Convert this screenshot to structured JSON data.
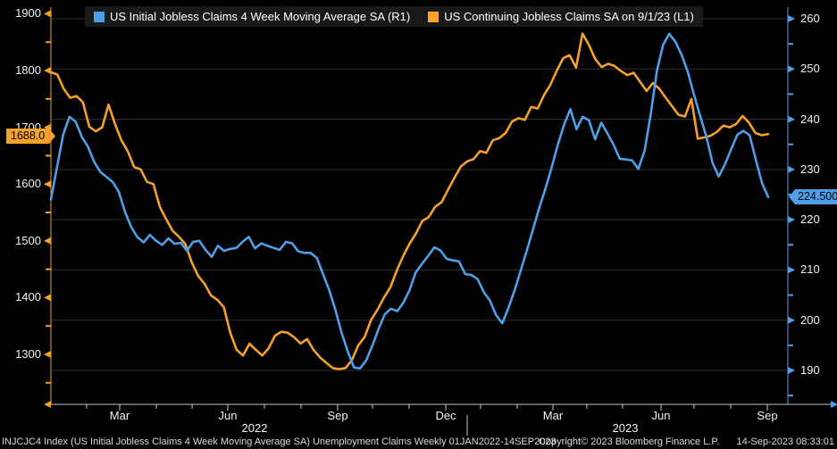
{
  "legend": {
    "items": [
      {
        "label": "US Initial Jobless Claims 4 Week Moving Average SA  (R1)",
        "color": "#4f9fe8"
      },
      {
        "label": "US Continuing Jobless Claims SA  on 9/1/23 (L1)",
        "color": "#ffa22b"
      }
    ]
  },
  "badges": {
    "left_value": "1688.0",
    "right_value": "224.500"
  },
  "colors": {
    "blue": "#4f9fe8",
    "orange": "#f4a02c",
    "grid": "#2f2f2f",
    "axis_white": "#c8c8c8",
    "background": "#000000"
  },
  "left_axis": {
    "tick_labels": [
      "1900",
      "1800",
      "1700",
      "1600",
      "1500",
      "1400",
      "1300"
    ]
  },
  "right_axis": {
    "tick_labels": [
      "260",
      "250",
      "240",
      "230",
      "220",
      "210",
      "200",
      "190"
    ]
  },
  "x_axis": {
    "month_labels": [
      "Mar",
      "Jun",
      "Sep",
      "Dec",
      "Mar",
      "Jun",
      "Sep"
    ],
    "year_labels": [
      "2022",
      "2023"
    ]
  },
  "footer": {
    "left": "INJCJC4 Index (US Initial Jobless Claims 4 Week Moving Average SA) Unemployment Claims  Weekly 01JAN2022-14SEP2023",
    "center": "Copyright© 2023 Bloomberg Finance L.P.",
    "right": "14-Sep-2023 08:33:01"
  },
  "chart_data": {
    "type": "line",
    "x_range": "Weekly, 01JAN2022 - 14SEP2023",
    "x_tick_months": [
      "Mar 2022",
      "Jun 2022",
      "Sep 2022",
      "Dec 2022",
      "Mar 2023",
      "Jun 2023",
      "Sep 2023"
    ],
    "ylim_left": [
      1300,
      1900
    ],
    "ylim_right": [
      190,
      260
    ],
    "grid": "horizontal, aligned to right axis ticks",
    "legend_position": "top",
    "last_values": {
      "initial_claims_4wk_ma": 224.5,
      "continuing_claims": 1688.0
    },
    "series": [
      {
        "name": "US Continuing Jobless Claims SA  on 9/1/23 (L1)",
        "axis": "left",
        "color": "#f4a02c",
        "values": [
          1797,
          1793,
          1768,
          1752,
          1755,
          1744,
          1701,
          1693,
          1700,
          1740,
          1706,
          1677,
          1658,
          1630,
          1626,
          1604,
          1600,
          1560,
          1538,
          1518,
          1507,
          1494,
          1462,
          1438,
          1424,
          1404,
          1396,
          1383,
          1338,
          1308,
          1298,
          1319,
          1308,
          1298,
          1311,
          1333,
          1340,
          1338,
          1330,
          1319,
          1327,
          1308,
          1295,
          1285,
          1276,
          1274,
          1276,
          1290,
          1316,
          1331,
          1361,
          1379,
          1400,
          1418,
          1448,
          1473,
          1495,
          1513,
          1535,
          1542,
          1560,
          1568,
          1590,
          1611,
          1631,
          1640,
          1644,
          1658,
          1655,
          1677,
          1681,
          1690,
          1710,
          1716,
          1713,
          1736,
          1733,
          1757,
          1775,
          1800,
          1822,
          1827,
          1805,
          1865,
          1845,
          1820,
          1806,
          1812,
          1808,
          1799,
          1792,
          1796,
          1780,
          1764,
          1778,
          1768,
          1752,
          1737,
          1722,
          1719,
          1750,
          1680,
          1682,
          1685,
          1692,
          1703,
          1700,
          1706,
          1720,
          1708,
          1690,
          1686,
          1688
        ]
      },
      {
        "name": "US Initial Jobless Claims 4 Week Moving Average SA  (R1)",
        "axis": "right",
        "color": "#4f9fe8",
        "values": [
          224,
          230.5,
          237,
          240.5,
          239.5,
          236.5,
          234.5,
          231.5,
          229.5,
          228.5,
          227.5,
          225.5,
          221.5,
          218.5,
          216.5,
          215.5,
          217,
          215.8,
          215,
          216.3,
          215.2,
          215.4,
          213.8,
          215.6,
          215.8,
          214,
          212.6,
          214.8,
          213.8,
          214.2,
          214.4,
          215.6,
          216.6,
          214.3,
          215.3,
          214.8,
          214.4,
          214,
          215.6,
          215.3,
          213.7,
          213.4,
          213.4,
          212.4,
          209.2,
          206,
          202.1,
          197.5,
          193.8,
          190.6,
          190.4,
          192,
          195,
          198.3,
          201.2,
          202.3,
          201.8,
          203.5,
          206,
          209.5,
          211.2,
          212.8,
          214.5,
          213.9,
          212.2,
          211.9,
          211.7,
          209.2,
          209,
          208.2,
          205.6,
          203.9,
          201,
          199.4,
          202.5,
          206,
          210,
          214,
          218.2,
          222.5,
          226.3,
          230.5,
          235,
          239,
          242,
          238,
          240.5,
          239.8,
          236,
          239.3,
          237.2,
          234.9,
          232.1,
          232,
          231.8,
          230.1,
          233.7,
          241,
          249.6,
          254.8,
          257,
          255.4,
          252.8,
          249.4,
          244.9,
          240.6,
          236.5,
          231.3,
          228.6,
          231,
          234,
          236.9,
          237.7,
          236.8,
          231.9,
          227.3,
          224.5
        ]
      }
    ]
  }
}
